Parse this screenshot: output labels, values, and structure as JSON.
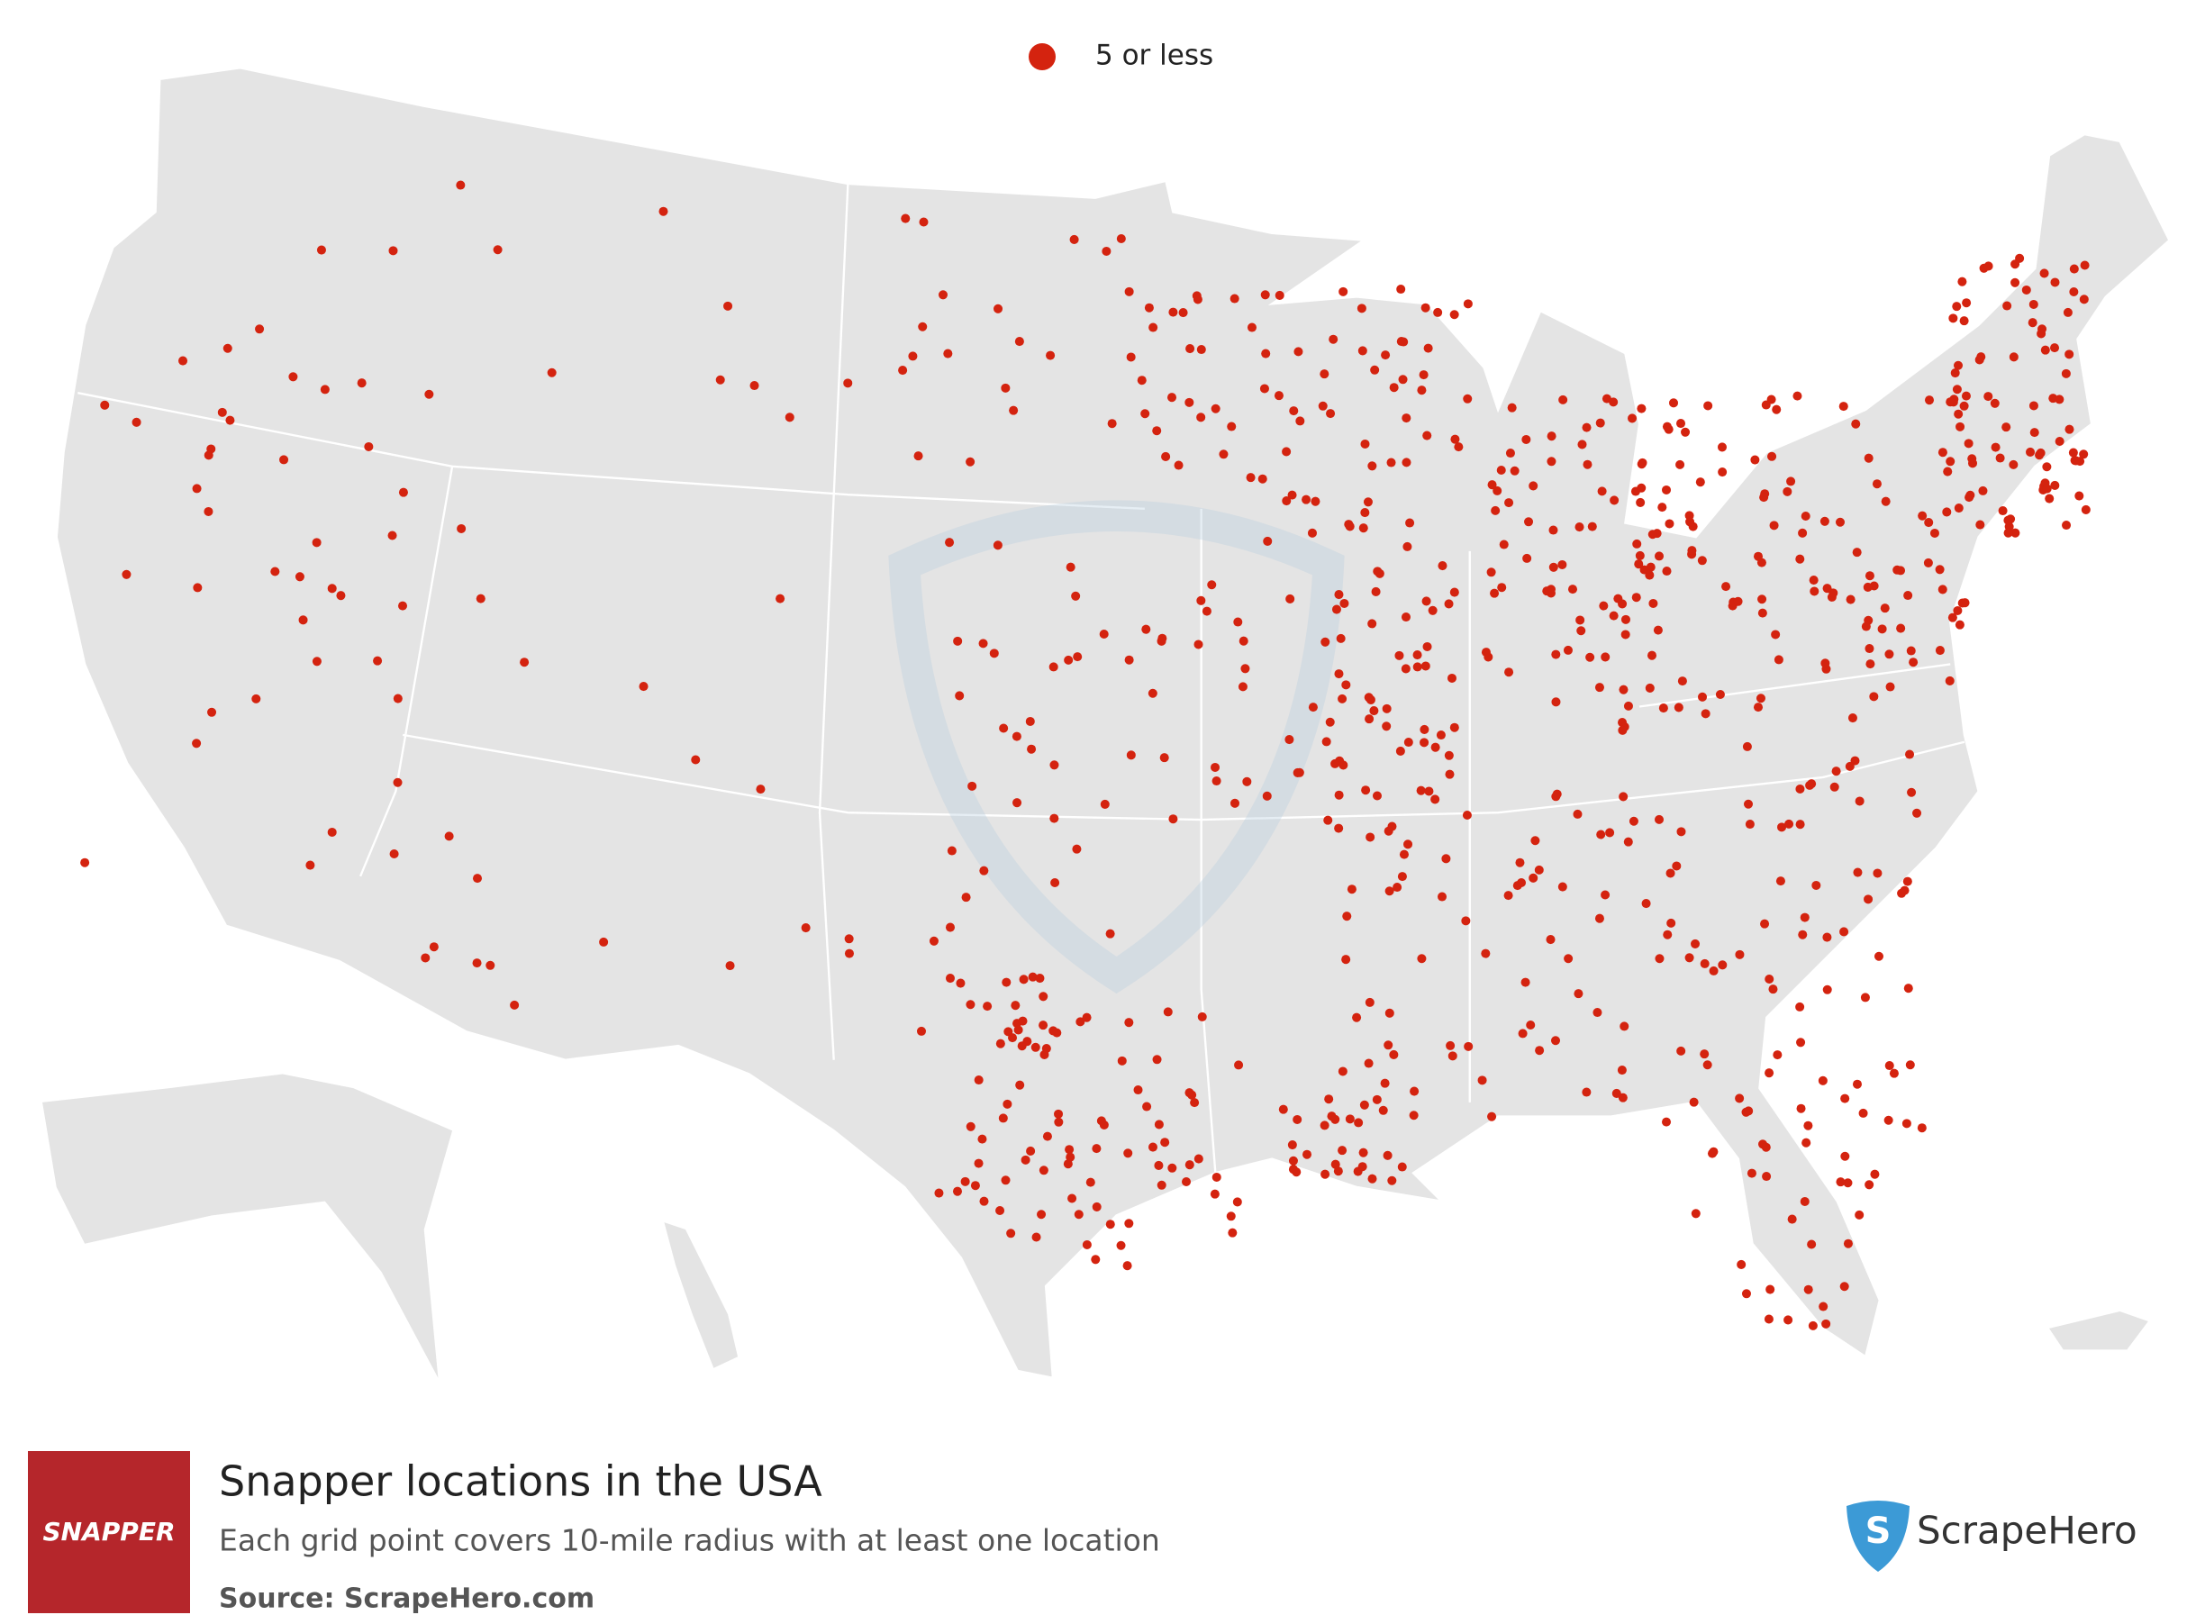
{
  "legend": {
    "label": "5 or less"
  },
  "footer": {
    "brand_logo": "SNAPPER",
    "title": "Snapper locations in the USA",
    "subtitle": "Each grid point covers 10-mile radius with at least one location",
    "source": "Source: ScrapeHero.com",
    "watermark_logo": "ScrapeHero"
  }
}
